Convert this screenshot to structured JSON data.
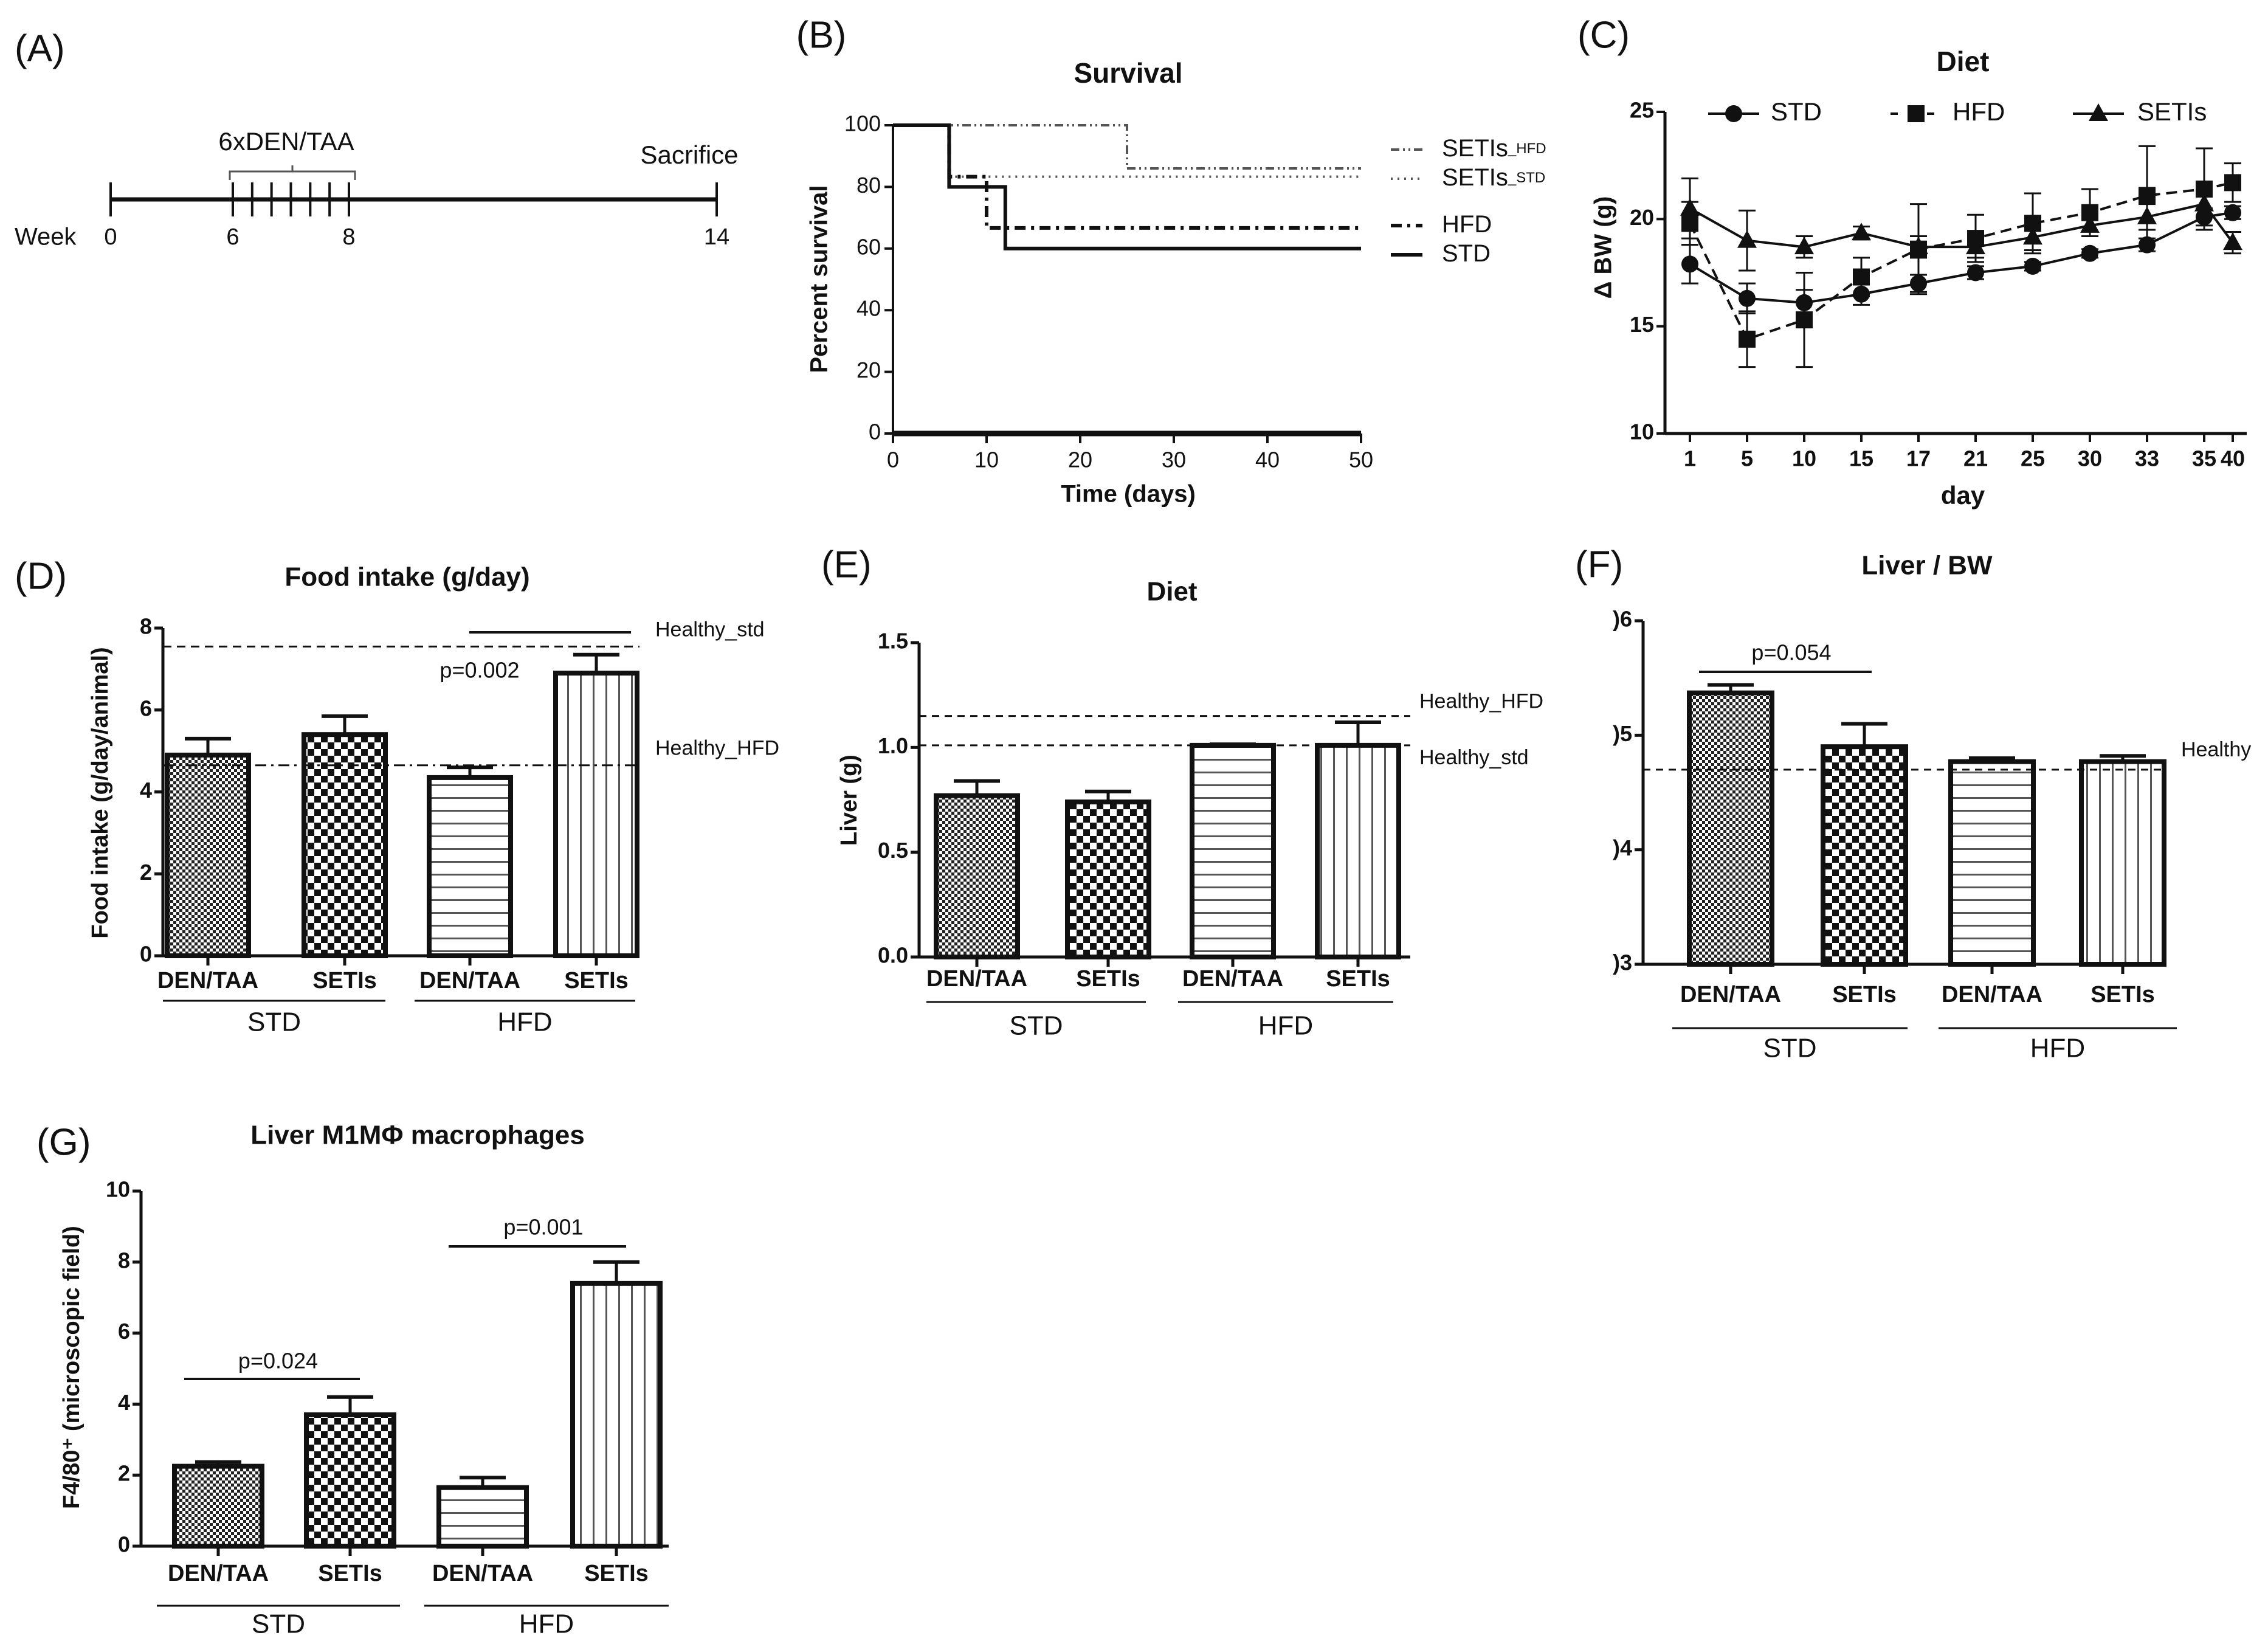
{
  "timeline": {
    "panel_label": "(A)",
    "week_label": "Week",
    "ticks": [
      "0",
      "6",
      "8",
      "14"
    ],
    "treatment_label": "6xDEN/TAA",
    "treatment_injections": 7,
    "end_label": "Sacrifice"
  },
  "chart_data": [
    {
      "panel_label": "(B)",
      "type": "line",
      "subtype": "kaplan-meier",
      "title": "Survival",
      "xlabel": "Time (days)",
      "ylabel": "Percent survival",
      "xlim": [
        0,
        50
      ],
      "ylim": [
        0,
        100
      ],
      "xticks": [
        "0",
        "10",
        "20",
        "30",
        "40",
        "50"
      ],
      "yticks": [
        "0",
        "20",
        "40",
        "60",
        "80",
        "100"
      ],
      "legend_position": "right",
      "series": [
        {
          "label": "SETIs",
          "subscript": "_HFD",
          "steps": [
            [
              0,
              100
            ],
            [
              25,
              86
            ],
            [
              50,
              86
            ]
          ]
        },
        {
          "label": "SETIs",
          "subscript": "_STD",
          "steps": [
            [
              0,
              100
            ],
            [
              6,
              83.3
            ],
            [
              50,
              83.3
            ]
          ]
        },
        {
          "label": "HFD",
          "subscript": "",
          "steps": [
            [
              0,
              100
            ],
            [
              6,
              83.3
            ],
            [
              10,
              66.7
            ],
            [
              50,
              66.7
            ]
          ]
        },
        {
          "label": "STD",
          "subscript": "",
          "steps": [
            [
              0,
              100
            ],
            [
              6,
              80
            ],
            [
              12,
              60
            ],
            [
              50,
              60
            ]
          ]
        }
      ]
    },
    {
      "panel_label": "(C)",
      "type": "line",
      "title": "Diet",
      "xlabel": "day",
      "ylabel": "Δ BW (g)",
      "ylim": [
        10,
        25
      ],
      "yticks": [
        "10",
        "15",
        "20",
        "25"
      ],
      "categories": [
        "1",
        "5",
        "10",
        "15",
        "17",
        "21",
        "25",
        "30",
        "33",
        "35",
        "40"
      ],
      "legend_position": "top",
      "series": [
        {
          "name": "STD",
          "marker": "circle",
          "values": [
            17.9,
            16.3,
            16.1,
            16.5,
            17.0,
            17.5,
            17.8,
            18.4,
            18.8,
            20.1,
            20.3
          ],
          "errors": [
            0.9,
            0.7,
            0.6,
            0.5,
            0.4,
            0.3,
            0.2,
            0.2,
            0.3,
            0.4,
            0.3
          ]
        },
        {
          "name": "HFD",
          "marker": "square",
          "values": [
            19.8,
            14.4,
            15.3,
            17.3,
            18.6,
            19.1,
            19.8,
            20.3,
            21.1,
            21.4,
            21.7
          ],
          "errors": [
            1.0,
            1.3,
            2.2,
            0.9,
            2.1,
            1.1,
            1.4,
            1.1,
            2.3,
            1.9,
            0.9
          ]
        },
        {
          "name": "SETIs",
          "marker": "triangle",
          "values": [
            20.5,
            19.0,
            18.7,
            19.35,
            18.7,
            18.7,
            19.15,
            19.7,
            20.1,
            20.7,
            18.9
          ],
          "errors": [
            1.4,
            1.4,
            0.5,
            0.3,
            0.5,
            0.5,
            0.6,
            0.5,
            0.6,
            0.6,
            0.5
          ]
        }
      ]
    },
    {
      "panel_label": "(D)",
      "type": "bar",
      "title": "Food intake (g/day)",
      "ylabel": "Food intake (g/day/animal)",
      "ylim": [
        0,
        8
      ],
      "yticks": [
        "0",
        "2",
        "4",
        "6",
        "8"
      ],
      "categories": [
        "DEN/TAA",
        "SETIs",
        "DEN/TAA",
        "SETIs"
      ],
      "groups": [
        "STD",
        "HFD"
      ],
      "values": [
        4.9,
        5.4,
        4.35,
        6.9
      ],
      "errors": [
        0.4,
        0.45,
        0.25,
        0.45
      ],
      "reference_lines": [
        {
          "label": "Healthy_std",
          "value": 7.55,
          "style": "dashed"
        },
        {
          "label": "Healthy_HFD",
          "value": 4.65,
          "style": "dashdot"
        }
      ],
      "significance": [
        {
          "between": [
            2,
            3
          ],
          "label": "p=0.002"
        }
      ]
    },
    {
      "panel_label": "(E)",
      "type": "bar",
      "title": "Diet",
      "ylabel": "Liver (g)",
      "ylim": [
        0,
        1.5
      ],
      "yticks": [
        "0.0",
        "0.5",
        "1.0",
        "1.5"
      ],
      "categories": [
        "DEN/TAA",
        "SETIs",
        "DEN/TAA",
        "SETIs"
      ],
      "groups": [
        "STD",
        "HFD"
      ],
      "values": [
        0.77,
        0.74,
        1.01,
        1.01
      ],
      "errors": [
        0.07,
        0.05,
        0.005,
        0.11
      ],
      "reference_lines": [
        {
          "label": "Healthy_HFD",
          "value": 1.15,
          "style": "dashed"
        },
        {
          "label": "Healthy_std",
          "value": 1.01,
          "style": "dashed"
        }
      ],
      "significance": []
    },
    {
      "panel_label": "(F)",
      "type": "bar",
      "title": "Liver / BW",
      "ylabel": "",
      "ylim": [
        0.03,
        0.06
      ],
      "yticks": [
        ")3",
        ")4",
        ")5",
        ")6"
      ],
      "categories": [
        "DEN/TAA",
        "SETIs",
        "DEN/TAA",
        "SETIs"
      ],
      "groups": [
        "STD",
        "HFD"
      ],
      "values": [
        0.0537,
        0.049,
        0.0477,
        0.0477
      ],
      "errors": [
        0.0007,
        0.002,
        0.0003,
        0.0005
      ],
      "reference_lines": [
        {
          "label": "Healthy",
          "value": 0.047,
          "style": "dashed"
        }
      ],
      "significance": [
        {
          "between": [
            0,
            1
          ],
          "label": "p=0.054"
        }
      ]
    },
    {
      "panel_label": "(G)",
      "type": "bar",
      "title": "Liver M1MΦ macrophages",
      "ylabel": "F4/80⁺ (microscopic field)",
      "ylim": [
        0,
        10
      ],
      "yticks": [
        "0",
        "2",
        "4",
        "6",
        "8",
        "10"
      ],
      "categories": [
        "DEN/TAA",
        "SETIs",
        "DEN/TAA",
        "SETIs"
      ],
      "groups": [
        "STD",
        "HFD"
      ],
      "values": [
        2.25,
        3.7,
        1.65,
        7.4
      ],
      "errors": [
        0.12,
        0.5,
        0.28,
        0.6
      ],
      "reference_lines": [],
      "significance": [
        {
          "between": [
            0,
            1
          ],
          "label": "p=0.024"
        },
        {
          "between": [
            2,
            3
          ],
          "label": "p=0.001"
        }
      ]
    }
  ]
}
